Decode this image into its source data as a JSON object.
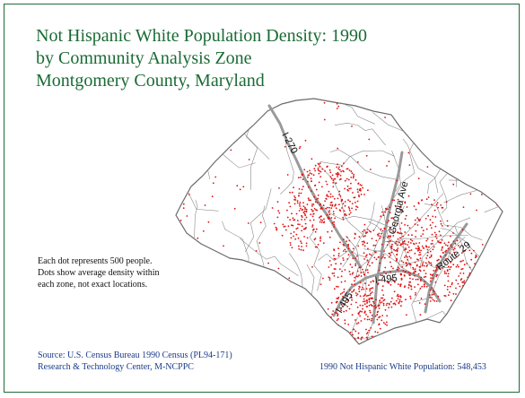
{
  "title_lines": [
    "Not Hispanic White Population Density: 1990",
    "by Community Analysis Zone",
    "Montgomery County, Maryland"
  ],
  "note_lines": [
    "Each dot represents 500 people.",
    "Dots show average density within",
    "each zone, not exact locations."
  ],
  "source_lines": [
    "Source: U.S. Census Bureau 1990 Census (PL94-171)",
    "Research & Technology Center, M-NCPPC"
  ],
  "total_label": "1990 Not Hispanic White Population:  548,453",
  "road_labels": {
    "i270": "I-270",
    "georgia": "Georgia Ave",
    "route29": "Route 29",
    "i495_north": "I-495",
    "i495_west": "I-495"
  },
  "colors": {
    "title": "#1a6b35",
    "frame": "#1f6b3a",
    "dot": "#e01010",
    "boundary": "#8a8a8a",
    "road": "#9a9a9a",
    "source_text": "#1a3a8a"
  },
  "dot_value_people": 500
}
